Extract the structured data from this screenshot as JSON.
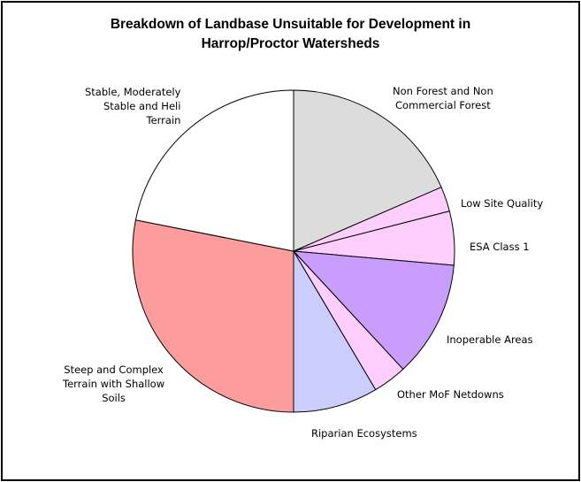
{
  "chart_data": {
    "type": "pie",
    "title": "Breakdown of Landbase Unsuitable for Development in Harrop/Proctor Watersheds",
    "title_lines": [
      "Breakdown of Landbase Unsuitable for Development in",
      "Harrop/Proctor Watersheds"
    ],
    "slices": [
      {
        "label": "Non Forest and Non Commercial Forest",
        "label_lines": [
          "Non Forest and Non",
          "Commercial Forest"
        ],
        "value": 18.5,
        "color": "#dcdcdc"
      },
      {
        "label": "Low Site Quality",
        "label_lines": [
          "Low Site Quality"
        ],
        "value": 2.5,
        "color": "#fdcdfc"
      },
      {
        "label": "ESA Class 1",
        "label_lines": [
          "ESA Class 1"
        ],
        "value": 5.4,
        "color": "#fdcdfc"
      },
      {
        "label": "Inoperable Areas",
        "label_lines": [
          "Inoperable Areas"
        ],
        "value": 11.7,
        "color": "#c89dfc"
      },
      {
        "label": "Other MoF Netdowns",
        "label_lines": [
          "Other MoF Netdowns"
        ],
        "value": 3.4,
        "color": "#fdcdfc"
      },
      {
        "label": "Riparian Ecosystems",
        "label_lines": [
          "Riparian Ecosystems"
        ],
        "value": 8.5,
        "color": "#cbcdfd"
      },
      {
        "label": "Steep and Complex Terrain with Shallow Soils",
        "label_lines": [
          "Steep and Complex",
          "Terrain with Shallow",
          "Soils"
        ],
        "value": 28.1,
        "color": "#fc9c9c"
      },
      {
        "label": "Stable, Moderately Stable and Heli Terrain",
        "label_lines": [
          "Stable, Moderately",
          "Stable and Heli",
          "Terrain"
        ],
        "value": 21.9,
        "color": "#ffffff"
      }
    ],
    "start_angle_deg": 0,
    "direction": "clockwise",
    "legend": "none",
    "labels": "outside"
  }
}
